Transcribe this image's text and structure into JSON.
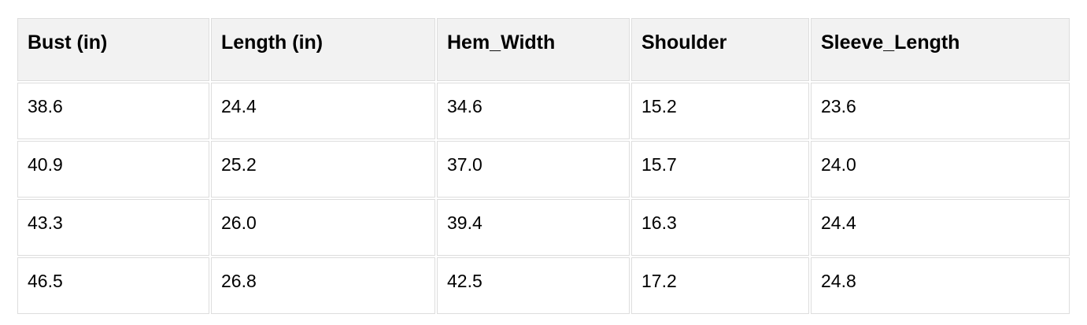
{
  "table": {
    "headers": [
      "Bust (in)",
      "Length (in)",
      "Hem_Width",
      "Shoulder",
      "Sleeve_Length"
    ],
    "rows": [
      [
        "38.6",
        "24.4",
        "34.6",
        "15.2",
        "23.6"
      ],
      [
        "40.9",
        "25.2",
        "37.0",
        "15.7",
        "24.0"
      ],
      [
        "43.3",
        "26.0",
        "39.4",
        "16.3",
        "24.4"
      ],
      [
        "46.5",
        "26.8",
        "42.5",
        "17.2",
        "24.8"
      ]
    ]
  },
  "colors": {
    "header_background": "#f2f2f2",
    "cell_background": "#ffffff",
    "border": "#dddddd",
    "text": "#000000",
    "page_background": "#ffffff"
  },
  "chart_data": {
    "type": "table",
    "title": "",
    "columns": [
      "Bust (in)",
      "Length (in)",
      "Hem_Width",
      "Shoulder",
      "Sleeve_Length"
    ],
    "rows": [
      [
        38.6,
        24.4,
        34.6,
        15.2,
        23.6
      ],
      [
        40.9,
        25.2,
        37.0,
        15.7,
        24.0
      ],
      [
        43.3,
        26.0,
        39.4,
        16.3,
        24.4
      ],
      [
        46.5,
        26.8,
        42.5,
        17.2,
        24.8
      ]
    ],
    "layout": {
      "header_row": true,
      "grid": true,
      "alignment": "left"
    }
  }
}
